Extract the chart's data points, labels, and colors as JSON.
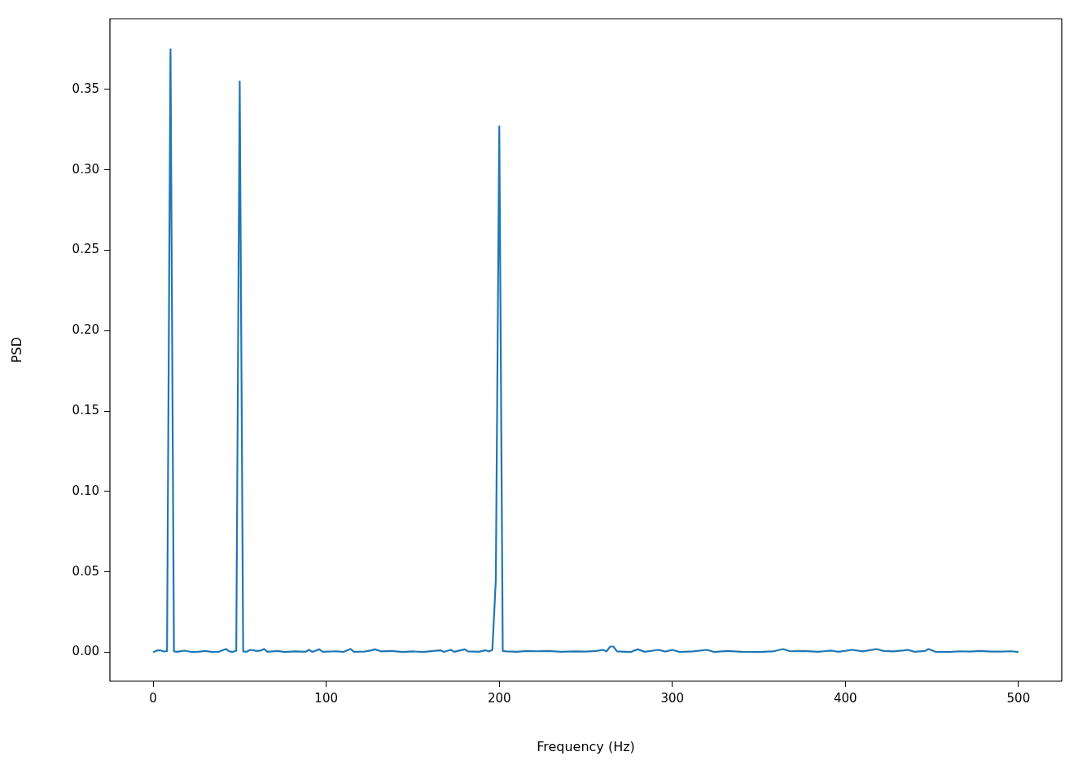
{
  "chart_data": {
    "type": "line",
    "xlabel": "Frequency (Hz)",
    "ylabel": "PSD",
    "xlim": [
      -25,
      525
    ],
    "xticks": [
      0,
      100,
      200,
      300,
      400,
      500
    ],
    "ylim": [
      -0.018,
      0.394
    ],
    "yticks": [
      {
        "value": 0,
        "label": "0.00"
      },
      {
        "value": 0.05,
        "label": "0.05"
      },
      {
        "value": 0.1,
        "label": "0.10"
      },
      {
        "value": 0.15,
        "label": "0.15"
      },
      {
        "value": 0.2,
        "label": "0.20"
      },
      {
        "value": 0.25,
        "label": "0.25"
      },
      {
        "value": 0.3,
        "label": "0.30"
      },
      {
        "value": 0.35,
        "label": "0.35"
      }
    ],
    "legend": false,
    "marker": "none",
    "line_style": "solid",
    "series": [
      {
        "color": "#1f77b4",
        "x": [
          0,
          2,
          4,
          6,
          8,
          10,
          12,
          14,
          18,
          22,
          26,
          30,
          34,
          38,
          42,
          44,
          46,
          48,
          50,
          52,
          54,
          56,
          60,
          62,
          64,
          66,
          72,
          76,
          82,
          88,
          90,
          92,
          96,
          98,
          106,
          110,
          114,
          116,
          122,
          126,
          128,
          132,
          138,
          144,
          150,
          156,
          162,
          166,
          168,
          172,
          174,
          180,
          182,
          188,
          192,
          194,
          196,
          198,
          200,
          202,
          204,
          210,
          216,
          222,
          228,
          236,
          244,
          250,
          256,
          260,
          262,
          264,
          266,
          268,
          276,
          280,
          284,
          292,
          296,
          300,
          304,
          312,
          320,
          324,
          332,
          340,
          350,
          358,
          364,
          368,
          376,
          384,
          392,
          396,
          404,
          410,
          418,
          422,
          428,
          434,
          436,
          440,
          446,
          448,
          452,
          460,
          466,
          472,
          478,
          484,
          490,
          496,
          500
        ],
        "values": [
          0,
          0.001,
          0.0012,
          0.0005,
          0.0006,
          0.375,
          0.0005,
          0.0003,
          0.001,
          0.0002,
          0.0003,
          0.0008,
          0.0002,
          0.0003,
          0.002,
          0.0005,
          0.0002,
          0.001,
          0.355,
          0.0005,
          0.0003,
          0.0015,
          0.0008,
          0.001,
          0.002,
          0.0003,
          0.0008,
          0.0002,
          0.0005,
          0.0003,
          0.0015,
          0.0002,
          0.0018,
          0.0003,
          0.0006,
          0.0002,
          0.002,
          0.0003,
          0.0004,
          0.0012,
          0.0018,
          0.0005,
          0.0008,
          0.0002,
          0.0005,
          0.0002,
          0.0008,
          0.0012,
          0.0002,
          0.0015,
          0.0003,
          0.0018,
          0.0005,
          0.0003,
          0.0012,
          0.0005,
          0.0015,
          0.045,
          0.327,
          0.0008,
          0.0005,
          0.0003,
          0.0008,
          0.0006,
          0.0008,
          0.0003,
          0.0005,
          0.0004,
          0.0008,
          0.0015,
          0.0005,
          0.0035,
          0.0035,
          0.0005,
          0.0002,
          0.0018,
          0.0003,
          0.0015,
          0.0004,
          0.0015,
          0.0002,
          0.0005,
          0.0015,
          0.0002,
          0.0008,
          0.0003,
          0.0002,
          0.0005,
          0.002,
          0.0006,
          0.0008,
          0.0003,
          0.001,
          0.0003,
          0.0015,
          0.0005,
          0.002,
          0.0008,
          0.0005,
          0.0012,
          0.0015,
          0.0003,
          0.0008,
          0.002,
          0.0003,
          0.0002,
          0.0006,
          0.0004,
          0.0008,
          0.0004,
          0.0004,
          0.0006,
          0.0002
        ]
      }
    ]
  }
}
